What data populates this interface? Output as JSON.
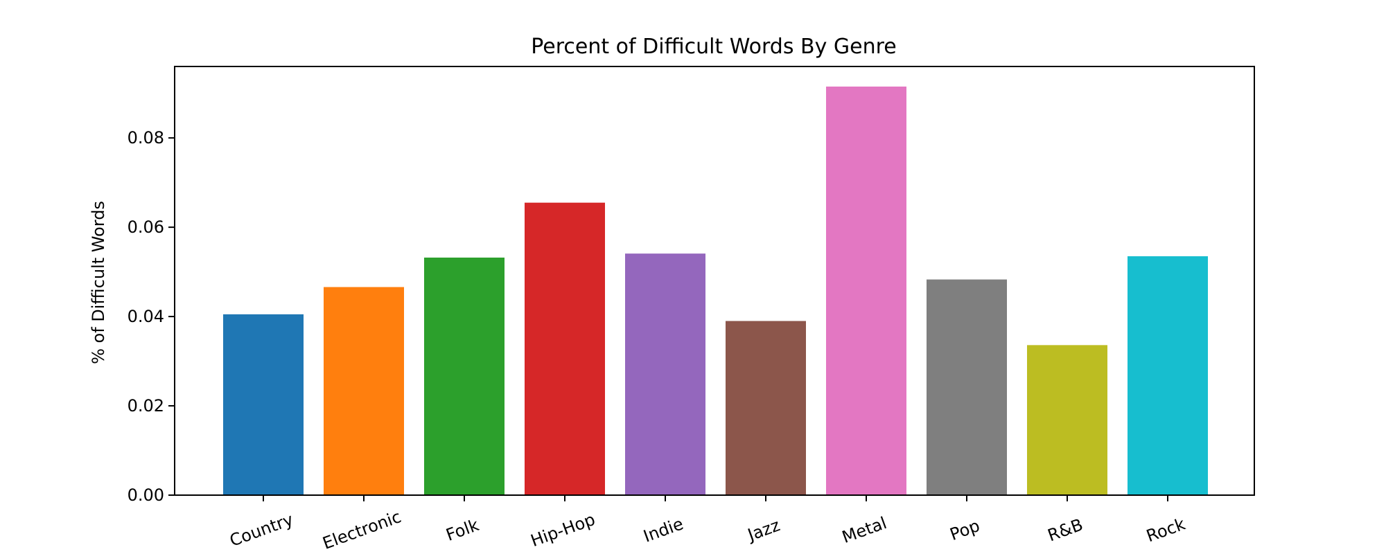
{
  "chart_data": {
    "type": "bar",
    "title": "Percent of Difficult Words By Genre",
    "xlabel": "",
    "ylabel": "% of Difficult Words",
    "categories": [
      "Country",
      "Electronic",
      "Folk",
      "Hip-Hop",
      "Indie",
      "Jazz",
      "Metal",
      "Pop",
      "R&B",
      "Rock"
    ],
    "values": [
      0.0405,
      0.0466,
      0.0532,
      0.0655,
      0.0541,
      0.039,
      0.0915,
      0.0483,
      0.0336,
      0.0535
    ],
    "colors": [
      "#1f77b4",
      "#ff7f0e",
      "#2ca02c",
      "#d62728",
      "#9467bd",
      "#8c564b",
      "#e377c2",
      "#7f7f7f",
      "#bcbd22",
      "#17becf"
    ],
    "ylim": [
      0,
      0.096
    ],
    "yticks": [
      0.0,
      0.02,
      0.04,
      0.06,
      0.08
    ],
    "ytick_labels": [
      "0.00",
      "0.02",
      "0.04",
      "0.06",
      "0.08"
    ],
    "grid": false,
    "legend": "none"
  }
}
